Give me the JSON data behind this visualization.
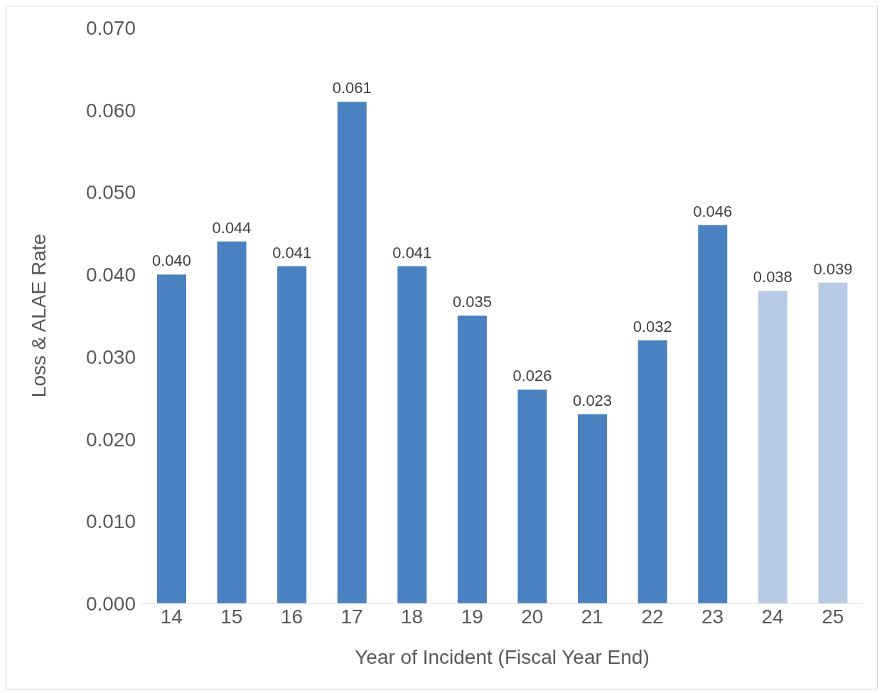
{
  "chart_data": {
    "type": "bar",
    "xlabel": "Year of Incident (Fiscal Year End)",
    "ylabel": "Loss & ALAE Rate",
    "categories": [
      "14",
      "15",
      "16",
      "17",
      "18",
      "19",
      "20",
      "21",
      "22",
      "23",
      "24",
      "25"
    ],
    "values": [
      0.04,
      0.044,
      0.041,
      0.061,
      0.041,
      0.035,
      0.026,
      0.023,
      0.032,
      0.046,
      0.038,
      0.039
    ],
    "colors": [
      "#4a81c0",
      "#4a81c0",
      "#4a81c0",
      "#4a81c0",
      "#4a81c0",
      "#4a81c0",
      "#4a81c0",
      "#4a81c0",
      "#4a81c0",
      "#4a81c0",
      "#b7cce4",
      "#b7cce4"
    ],
    "value_labels": [
      "0.040",
      "0.044",
      "0.041",
      "0.061",
      "0.041",
      "0.035",
      "0.026",
      "0.023",
      "0.032",
      "0.046",
      "0.038",
      "0.039"
    ],
    "ylim": [
      0,
      0.07
    ],
    "yticks": [
      {
        "value": 0,
        "label": "0.000"
      },
      {
        "value": 0.01,
        "label": "0.010"
      },
      {
        "value": 0.02,
        "label": "0.020"
      },
      {
        "value": 0.03,
        "label": "0.030"
      },
      {
        "value": 0.04,
        "label": "0.040"
      },
      {
        "value": 0.05,
        "label": "0.050"
      },
      {
        "value": 0.06,
        "label": "0.060"
      },
      {
        "value": 0.07,
        "label": "0.070"
      }
    ],
    "grid": false
  }
}
